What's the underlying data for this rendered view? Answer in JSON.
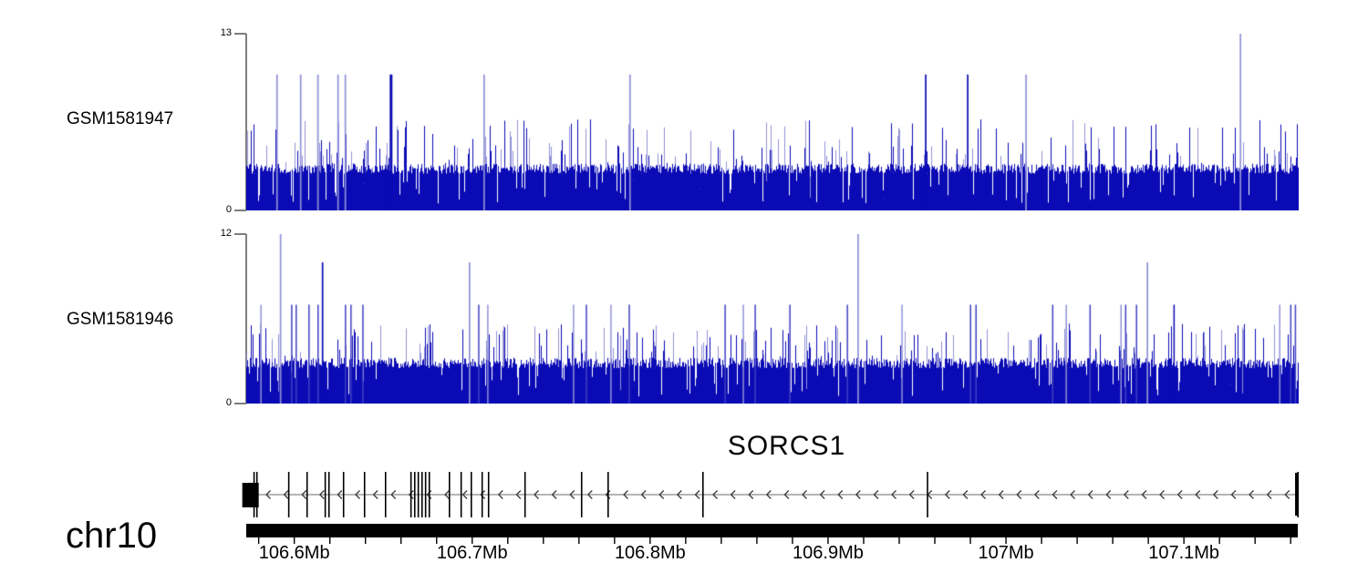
{
  "figure": {
    "background": "#ffffff",
    "chromosome_label": "chr10",
    "gene_label": "SORCS1"
  },
  "chart_data": [
    {
      "type": "area",
      "title": "GSM1581947",
      "ylim": [
        0,
        13
      ],
      "ytick_top": "13",
      "ytick_bottom": "0",
      "x_range_mb": [
        106.573,
        107.164
      ],
      "x_unit": "Mb",
      "color": "#0b0bb5",
      "light_color": "#9191d8",
      "baseline_band": [
        2.7,
        3.45
      ],
      "frequent_spike_level": 6,
      "seed": 1947,
      "peaks": [
        {
          "mb": 106.5903,
          "value": 10,
          "shade": "light"
        },
        {
          "mb": 106.6036,
          "value": 10,
          "shade": "light"
        },
        {
          "mb": 106.6133,
          "value": 10,
          "shade": "light"
        },
        {
          "mb": 106.6246,
          "value": 10,
          "shade": "light"
        },
        {
          "mb": 106.6287,
          "value": 10,
          "shade": "light"
        },
        {
          "mb": 106.6544,
          "value": 10,
          "shade": "dark",
          "wide": true
        },
        {
          "mb": 106.7067,
          "value": 10,
          "shade": "light"
        },
        {
          "mb": 106.7887,
          "value": 10,
          "shade": "light"
        },
        {
          "mb": 106.9549,
          "value": 10,
          "shade": "dark"
        },
        {
          "mb": 106.9785,
          "value": 10,
          "shade": "dark"
        },
        {
          "mb": 107.0113,
          "value": 10,
          "shade": "light"
        },
        {
          "mb": 107.1318,
          "value": 13,
          "shade": "light"
        }
      ]
    },
    {
      "type": "area",
      "title": "GSM1581946",
      "ylim": [
        0,
        12
      ],
      "ytick_top": "12",
      "ytick_bottom": "0",
      "x_range_mb": [
        106.573,
        107.164
      ],
      "x_unit": "Mb",
      "color": "#0b0bb5",
      "light_color": "#9191d8",
      "baseline_band": [
        2.5,
        3.25
      ],
      "frequent_spike_level": 5,
      "seed": 1946,
      "peaks": [
        {
          "mb": 106.5923,
          "value": 12,
          "shade": "light"
        },
        {
          "mb": 106.6159,
          "value": 10,
          "shade": "dark"
        },
        {
          "mb": 106.6985,
          "value": 10,
          "shade": "light"
        },
        {
          "mb": 106.9169,
          "value": 12,
          "shade": "light"
        },
        {
          "mb": 107.0795,
          "value": 10,
          "shade": "light"
        }
      ],
      "mid_spikes": [
        {
          "mb": 106.5812,
          "value": 7,
          "shade": "light"
        },
        {
          "mb": 106.5985,
          "value": 7,
          "shade": "mid"
        },
        {
          "mb": 106.601,
          "value": 7,
          "shade": "mid"
        },
        {
          "mb": 106.6082,
          "value": 7,
          "shade": "mid"
        },
        {
          "mb": 106.6133,
          "value": 7,
          "shade": "mid"
        },
        {
          "mb": 106.6287,
          "value": 7,
          "shade": "mid"
        },
        {
          "mb": 106.6318,
          "value": 7,
          "shade": "mid"
        },
        {
          "mb": 106.6385,
          "value": 7,
          "shade": "mid"
        },
        {
          "mb": 106.7036,
          "value": 7,
          "shade": "mid"
        },
        {
          "mb": 106.7087,
          "value": 7,
          "shade": "light"
        },
        {
          "mb": 106.7569,
          "value": 7,
          "shade": "light"
        },
        {
          "mb": 106.7641,
          "value": 7,
          "shade": "mid"
        },
        {
          "mb": 106.7779,
          "value": 7,
          "shade": "light"
        },
        {
          "mb": 106.7882,
          "value": 7,
          "shade": "mid"
        },
        {
          "mb": 106.8421,
          "value": 7,
          "shade": "mid"
        },
        {
          "mb": 106.8523,
          "value": 7,
          "shade": "light"
        },
        {
          "mb": 106.859,
          "value": 7,
          "shade": "mid"
        },
        {
          "mb": 106.8785,
          "value": 7,
          "shade": "mid"
        },
        {
          "mb": 106.9108,
          "value": 7,
          "shade": "mid"
        },
        {
          "mb": 106.9415,
          "value": 7,
          "shade": "light"
        },
        {
          "mb": 106.98,
          "value": 7,
          "shade": "mid"
        },
        {
          "mb": 106.9831,
          "value": 7,
          "shade": "mid"
        },
        {
          "mb": 107.0262,
          "value": 7,
          "shade": "mid"
        },
        {
          "mb": 107.0338,
          "value": 7,
          "shade": "light"
        },
        {
          "mb": 107.0472,
          "value": 7,
          "shade": "mid"
        },
        {
          "mb": 107.0646,
          "value": 7,
          "shade": "light"
        },
        {
          "mb": 107.0672,
          "value": 7,
          "shade": "mid"
        },
        {
          "mb": 107.0733,
          "value": 7,
          "shade": "mid"
        },
        {
          "mb": 107.0944,
          "value": 7,
          "shade": "dark"
        },
        {
          "mb": 107.1538,
          "value": 7,
          "shade": "light"
        },
        {
          "mb": 107.16,
          "value": 7,
          "shade": "mid"
        },
        {
          "mb": 107.1626,
          "value": 7,
          "shade": "mid"
        }
      ]
    },
    {
      "type": "gene-model",
      "gene": "SORCS1",
      "chromosome": "chr10",
      "strand": "-",
      "span_mb": [
        106.573,
        107.164
      ],
      "utr_box_mb": [
        106.5718,
        106.58
      ],
      "end_bar_mb": 107.163,
      "exons_mb": [
        106.5774,
        106.579,
        106.5969,
        106.6072,
        106.6174,
        106.6195,
        106.6277,
        106.6395,
        106.6513,
        106.6656,
        106.6677,
        106.6697,
        106.6718,
        106.6738,
        106.6759,
        106.6872,
        106.6938,
        106.6995,
        106.7056,
        106.7092,
        106.7297,
        106.7615,
        106.7764,
        106.8297,
        106.9559,
        107.1641
      ]
    },
    {
      "type": "genome-axis",
      "unit": "Mb",
      "minor_tick_interval_mb": 0.02,
      "major_ticks": [
        {
          "mb": 106.6,
          "label": "106.6Mb"
        },
        {
          "mb": 106.7,
          "label": "106.7Mb"
        },
        {
          "mb": 106.8,
          "label": "106.8Mb"
        },
        {
          "mb": 106.9,
          "label": "106.9Mb"
        },
        {
          "mb": 107.0,
          "label": "107Mb"
        },
        {
          "mb": 107.1,
          "label": "107.1Mb"
        }
      ]
    }
  ]
}
